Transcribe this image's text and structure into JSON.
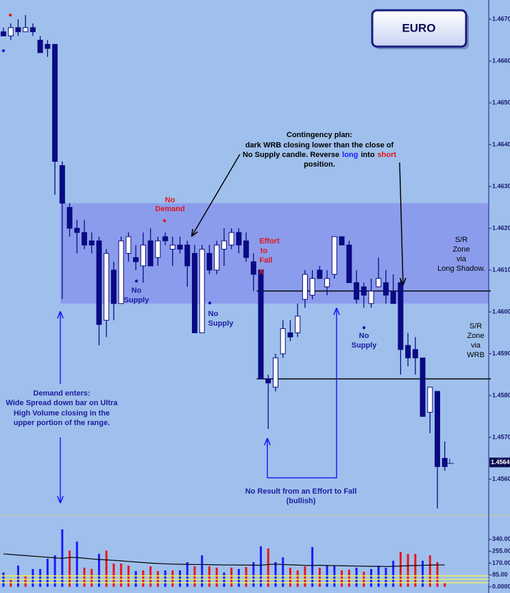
{
  "chart_data": [
    {
      "type": "candlestick",
      "title": "EURO",
      "open": [
        1.4667,
        1.4666,
        1.4668,
        1.4667,
        1.4668,
        1.4665,
        1.4664,
        1.4664,
        1.4635,
        1.4625,
        1.462,
        1.4619,
        1.4617,
        1.4617,
        1.4598,
        1.461,
        1.4602,
        1.4614,
        1.4613,
        1.4611,
        1.4617,
        1.4613,
        1.4618,
        1.4615,
        1.4616,
        1.4616,
        1.4614,
        1.4595,
        1.4614,
        1.461,
        1.4615,
        1.4616,
        1.4619,
        1.4617,
        1.4612,
        1.461,
        1.4584,
        1.4582,
        1.459,
        1.4595,
        1.4595,
        1.4603,
        1.4604,
        1.461,
        1.4606,
        1.4609,
        1.4618,
        1.4616,
        1.4607,
        1.4606,
        1.4602,
        1.4606,
        1.4607,
        1.4605,
        1.4607,
        1.4592,
        1.4591,
        1.4589,
        1.4576,
        1.4581,
        1.4565
      ],
      "high": [
        1.4668,
        1.4669,
        1.467,
        1.4671,
        1.4669,
        1.4666,
        1.4665,
        1.4664,
        1.4636,
        1.4626,
        1.4622,
        1.4622,
        1.4619,
        1.4618,
        1.4615,
        1.4612,
        1.4618,
        1.4619,
        1.4616,
        1.4619,
        1.462,
        1.4618,
        1.4619,
        1.4618,
        1.4618,
        1.4617,
        1.4616,
        1.4616,
        1.4616,
        1.4617,
        1.462,
        1.462,
        1.462,
        1.4619,
        1.4614,
        1.461,
        1.4585,
        1.459,
        1.4598,
        1.4598,
        1.4602,
        1.461,
        1.461,
        1.4611,
        1.461,
        1.4618,
        1.4618,
        1.4617,
        1.461,
        1.4607,
        1.4608,
        1.4613,
        1.461,
        1.4609,
        1.4608,
        1.4595,
        1.4594,
        1.4589,
        1.4582,
        1.4581,
        1.4569
      ],
      "low": [
        1.4666,
        1.4665,
        1.4666,
        1.4667,
        1.4666,
        1.4662,
        1.4661,
        1.4628,
        1.4603,
        1.4618,
        1.4614,
        1.4615,
        1.4614,
        1.4592,
        1.4594,
        1.4598,
        1.4602,
        1.4612,
        1.461,
        1.4607,
        1.4611,
        1.4611,
        1.4616,
        1.4611,
        1.4614,
        1.4606,
        1.4595,
        1.4595,
        1.4609,
        1.4609,
        1.4611,
        1.4615,
        1.4614,
        1.4612,
        1.4605,
        1.4584,
        1.4572,
        1.4581,
        1.4589,
        1.4593,
        1.4594,
        1.4601,
        1.4603,
        1.4608,
        1.4604,
        1.4608,
        1.4616,
        1.4607,
        1.4602,
        1.4601,
        1.4601,
        1.4606,
        1.4602,
        1.4602,
        1.4585,
        1.4587,
        1.4585,
        1.4575,
        1.4571,
        1.4553,
        1.4562
      ],
      "close": [
        1.4666,
        1.4668,
        1.4667,
        1.4668,
        1.4667,
        1.4662,
        1.4663,
        1.4636,
        1.4626,
        1.462,
        1.4619,
        1.4616,
        1.4616,
        1.4597,
        1.4614,
        1.4602,
        1.4617,
        1.4618,
        1.4612,
        1.4616,
        1.4611,
        1.4617,
        1.4617,
        1.4616,
        1.4615,
        1.4611,
        1.4595,
        1.4615,
        1.461,
        1.4616,
        1.4617,
        1.4619,
        1.4616,
        1.4613,
        1.4609,
        1.4584,
        1.4583,
        1.4589,
        1.4596,
        1.4594,
        1.4599,
        1.4609,
        1.4608,
        1.4608,
        1.4608,
        1.4618,
        1.4616,
        1.4607,
        1.4603,
        1.4604,
        1.4605,
        1.4608,
        1.4604,
        1.4602,
        1.4591,
        1.4589,
        1.4589,
        1.4575,
        1.4582,
        1.4563,
        1.4563
      ],
      "up_color": "#ffffff",
      "down_color": "#0a0a82",
      "zone_color": "#8b9cec",
      "ylim": [
        1.45513,
        1.46746
      ],
      "yticks": [
        {
          "value": 1.467,
          "label": "1.4670"
        },
        {
          "value": 1.466,
          "label": "1.4660"
        },
        {
          "value": 1.465,
          "label": "1.4650"
        },
        {
          "value": 1.464,
          "label": "1.4640"
        },
        {
          "value": 1.463,
          "label": "1.4630"
        },
        {
          "value": 1.462,
          "label": "1.4620"
        },
        {
          "value": 1.461,
          "label": "1.4610"
        },
        {
          "value": 1.46,
          "label": "1.4600"
        },
        {
          "value": 1.459,
          "label": "1.4590"
        },
        {
          "value": 1.458,
          "label": "1.4580"
        },
        {
          "value": 1.457,
          "label": "1.4570"
        },
        {
          "value": 1.456,
          "label": "1.4560"
        }
      ],
      "current_price": 1.4564,
      "zone": [
        1.4602,
        1.4626
      ],
      "levels": [
        1.4605,
        1.4584
      ],
      "annotations": {
        "contingency": [
          "Contingency plan:",
          "dark WRB closing lower than the close of",
          [
            "No Supply candle. Reverse",
            "long",
            "into",
            "short"
          ],
          "position."
        ],
        "no_demand": [
          "No",
          "Demand"
        ],
        "effort_to_fall": [
          "Effort",
          "to",
          "Fall",
          "X"
        ],
        "no_supply": [
          [
            "No",
            "Supply"
          ],
          [
            "No",
            "Supply"
          ],
          [
            "No",
            "Supply"
          ]
        ],
        "sr_long_shadow": [
          "S/R",
          "Zone",
          "via",
          "Long Shadow."
        ],
        "sr_wrb": [
          "S/R",
          "Zone",
          "via",
          "WRB"
        ],
        "demand_enters": [
          "Demand enters:",
          "Wide Spread down bar on Ultra",
          "High Volume closing in the",
          "upper portion of the range."
        ],
        "no_result": [
          "No Result from an Effort to Fall",
          "(bullish)"
        ]
      }
    },
    {
      "type": "bar",
      "values": [
        103,
        54,
        152,
        79,
        128,
        128,
        201,
        226,
        412,
        260,
        324,
        137,
        128,
        236,
        260,
        167,
        167,
        152,
        113,
        118,
        147,
        113,
        118,
        118,
        118,
        177,
        147,
        226,
        147,
        137,
        103,
        137,
        128,
        142,
        177,
        290,
        275,
        177,
        211,
        137,
        118,
        147,
        285,
        137,
        152,
        152,
        118,
        123,
        137,
        108,
        128,
        152,
        137,
        187,
        250,
        236,
        236,
        187,
        226,
        177,
        29
      ],
      "colors": [
        "#1a1aff",
        "#e8141c",
        "#1a1aff",
        "#e8141c",
        "#1a1aff",
        "#1a1aff",
        "#1a1aff",
        "#1a1aff",
        "#1a1aff",
        "#e8141c",
        "#1a1aff",
        "#e8141c",
        "#e8141c",
        "#1a1aff",
        "#e8141c",
        "#e8141c",
        "#e8141c",
        "#e8141c",
        "#1a1aff",
        "#e8141c",
        "#e8141c",
        "#e8141c",
        "#1a1aff",
        "#e8141c",
        "#1a1aff",
        "#1a1aff",
        "#e8141c",
        "#1a1aff",
        "#e8141c",
        "#e8141c",
        "#1a1aff",
        "#e8141c",
        "#1a1aff",
        "#e8141c",
        "#1a1aff",
        "#1a1aff",
        "#e8141c",
        "#1a1aff",
        "#1a1aff",
        "#e8141c",
        "#e8141c",
        "#e8141c",
        "#1a1aff",
        "#e8141c",
        "#1a1aff",
        "#1a1aff",
        "#e8141c",
        "#e8141c",
        "#1a1aff",
        "#e8141c",
        "#1a1aff",
        "#1a1aff",
        "#1a1aff",
        "#1a1aff",
        "#e8141c",
        "#e8141c",
        "#e8141c",
        "#1a1aff",
        "#e8141c",
        "#e8141c",
        "#e8141c"
      ],
      "ma": [
        236,
        232,
        228,
        224,
        220,
        216,
        212,
        208,
        204,
        211,
        210,
        205,
        200,
        196,
        193,
        190,
        186,
        182,
        178,
        174,
        170,
        167,
        165,
        163,
        162,
        161,
        160,
        160,
        159,
        158,
        157,
        157,
        156,
        156,
        155,
        155,
        160,
        162,
        160,
        158,
        156,
        154,
        153,
        155,
        153,
        152,
        151,
        150,
        149,
        148,
        147,
        147,
        146,
        147,
        149,
        151,
        153,
        154,
        156,
        157,
        157
      ],
      "ma_color": "#000000",
      "ylim": [
        -44,
        496
      ],
      "yticks": [
        {
          "value": 340,
          "label": "340.00"
        },
        {
          "value": 255,
          "label": "255.00"
        },
        {
          "value": 170,
          "label": "170.00"
        },
        {
          "value": 85,
          "label": "85.00"
        },
        {
          "value": 0,
          "label": "0.0000"
        }
      ]
    }
  ]
}
